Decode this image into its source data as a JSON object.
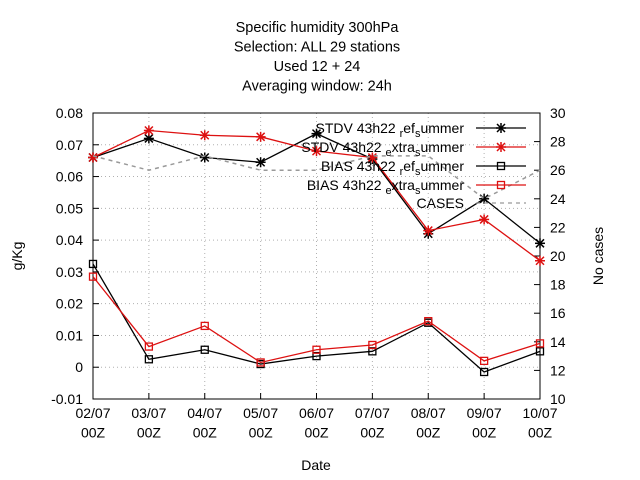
{
  "chart_data": {
    "type": "line",
    "title": "Specific humidity 300hPa",
    "subtitle_lines": [
      "Selection: ALL     29 stations",
      "Used  12  + 24",
      "Averaging window: 24h"
    ],
    "xlabel": "Date",
    "ylabel": "g/Kg",
    "y2label": "No cases",
    "categories": [
      "02/07\n00Z",
      "03/07\n00Z",
      "04/07\n00Z",
      "05/07\n00Z",
      "06/07\n00Z",
      "07/07\n00Z",
      "08/07\n00Z",
      "09/07\n00Z",
      "10/07\n00Z"
    ],
    "ylim": [
      -0.01,
      0.08
    ],
    "y2lim": [
      10,
      30
    ],
    "yticks": [
      "-0.01",
      "0",
      "0.01",
      "0.02",
      "0.03",
      "0.04",
      "0.05",
      "0.06",
      "0.07",
      "0.08"
    ],
    "y2ticks": [
      "10",
      "12",
      "14",
      "16",
      "18",
      "20",
      "22",
      "24",
      "26",
      "28",
      "30"
    ],
    "grid": true,
    "legend_position": "top-right",
    "series": [
      {
        "name": "STDV 43h22 ref_summer",
        "color": "#000000",
        "marker": "star",
        "axis": "y",
        "values": [
          0.066,
          0.072,
          0.066,
          0.0645,
          0.0735,
          0.0655,
          0.042,
          0.053,
          0.039
        ]
      },
      {
        "name": "STDV 43h22 extra_summer",
        "color": "#dd1111",
        "marker": "star",
        "axis": "y",
        "values": [
          0.066,
          0.0745,
          0.073,
          0.0725,
          0.068,
          0.066,
          0.043,
          0.0465,
          0.0335
        ]
      },
      {
        "name": "BIAS 43h22 ref_summer",
        "color": "#000000",
        "marker": "square",
        "axis": "y",
        "values": [
          0.0325,
          0.0025,
          0.0055,
          0.001,
          0.0035,
          0.005,
          0.014,
          -0.0015,
          0.005
        ]
      },
      {
        "name": "BIAS 43h22 extra_summer",
        "color": "#dd1111",
        "marker": "square",
        "axis": "y",
        "values": [
          0.0285,
          0.0065,
          0.013,
          0.0015,
          0.0055,
          0.007,
          0.0145,
          0.002,
          0.0075
        ]
      },
      {
        "name": "CASES",
        "color": "#999999",
        "marker": "none",
        "dashed": true,
        "axis": "y2",
        "values": [
          27,
          26,
          27,
          26,
          26,
          27,
          27,
          24,
          26
        ]
      }
    ]
  }
}
